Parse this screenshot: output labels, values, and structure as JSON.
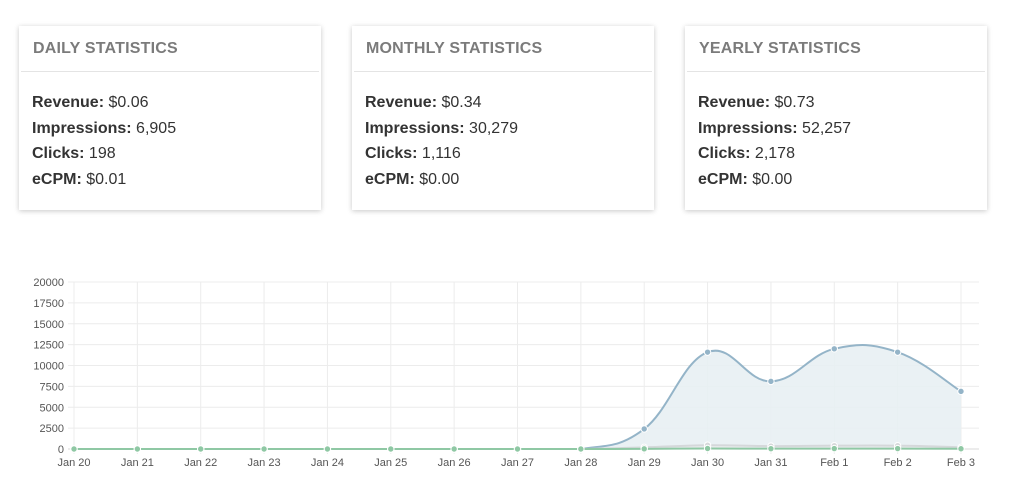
{
  "stats": [
    {
      "title": "DAILY STATISTICS",
      "rows": [
        {
          "label": "Revenue:",
          "value": "$0.06"
        },
        {
          "label": "Impressions:",
          "value": "6,905"
        },
        {
          "label": "Clicks:",
          "value": "198"
        },
        {
          "label": "eCPM:",
          "value": "$0.01"
        }
      ]
    },
    {
      "title": "MONTHLY STATISTICS",
      "rows": [
        {
          "label": "Revenue:",
          "value": "$0.34"
        },
        {
          "label": "Impressions:",
          "value": "30,279"
        },
        {
          "label": "Clicks:",
          "value": "1,116"
        },
        {
          "label": "eCPM:",
          "value": "$0.00"
        }
      ]
    },
    {
      "title": "YEARLY STATISTICS",
      "rows": [
        {
          "label": "Revenue:",
          "value": "$0.73"
        },
        {
          "label": "Impressions:",
          "value": "52,257"
        },
        {
          "label": "Clicks:",
          "value": "2,178"
        },
        {
          "label": "eCPM:",
          "value": "$0.00"
        }
      ]
    }
  ],
  "chart_data": {
    "type": "area",
    "categories": [
      "Jan 20",
      "Jan 21",
      "Jan 22",
      "Jan 23",
      "Jan 24",
      "Jan 25",
      "Jan 26",
      "Jan 27",
      "Jan 28",
      "Jan 29",
      "Jan 30",
      "Jan 31",
      "Feb 1",
      "Feb 2",
      "Feb 3"
    ],
    "ylim": [
      0,
      20000
    ],
    "yticks": [
      0,
      2500,
      5000,
      7500,
      10000,
      12500,
      15000,
      17500,
      20000
    ],
    "grid": true,
    "series": [
      {
        "values": [
          0,
          0,
          0,
          0,
          0,
          0,
          0,
          0,
          0,
          2400,
          11600,
          8100,
          12000,
          11600,
          6900
        ],
        "color": "#94b4c8",
        "fill": "#e8eff3"
      },
      {
        "values": [
          0,
          0,
          0,
          0,
          0,
          0,
          0,
          0,
          0,
          200,
          450,
          350,
          400,
          400,
          200
        ],
        "color": "#d5d8da",
        "fill": "#eceeef"
      },
      {
        "values": [
          0,
          0,
          0,
          0,
          0,
          0,
          0,
          0,
          0,
          20,
          60,
          40,
          50,
          50,
          30
        ],
        "color": "#8fc8a4",
        "fill": "none"
      }
    ]
  }
}
